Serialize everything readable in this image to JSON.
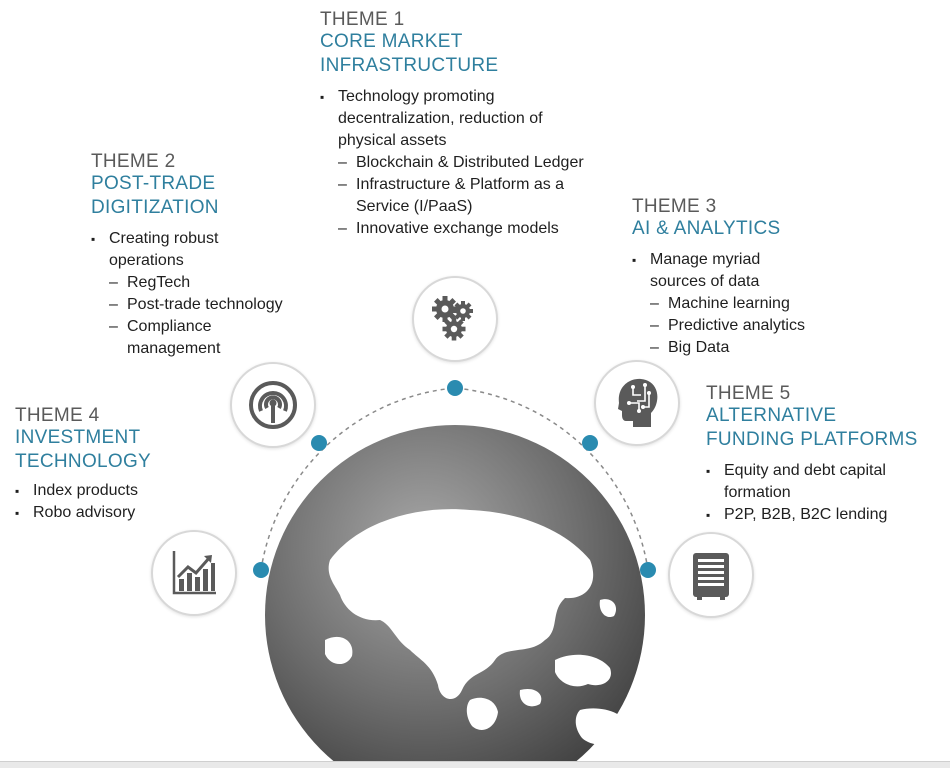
{
  "themes": {
    "t1": {
      "number": "THEME 1",
      "title_lines": [
        "CORE MARKET",
        "INFRASTRUCTURE"
      ],
      "bullets": [
        {
          "text": "Technology promoting decentralization, reduction of physical assets",
          "subs": [
            "Blockchain & Distributed Ledger",
            "Infrastructure & Platform as a Service  (I/PaaS)",
            "Innovative exchange models"
          ]
        }
      ]
    },
    "t2": {
      "number": "THEME 2",
      "title_lines": [
        "POST-TRADE",
        "DIGITIZATION"
      ],
      "bullets": [
        {
          "text": "Creating robust operations",
          "subs": [
            "RegTech",
            "Post-trade technology",
            "Compliance management"
          ]
        }
      ]
    },
    "t3": {
      "number": "THEME 3",
      "title_lines": [
        "AI & ANALYTICS"
      ],
      "bullets": [
        {
          "text": "Manage myriad sources of data",
          "subs": [
            "Machine learning",
            "Predictive analytics",
            "Big Data"
          ]
        }
      ]
    },
    "t4": {
      "number": "THEME 4",
      "title_lines": [
        "INVESTMENT",
        "TECHNOLOGY"
      ],
      "bullets": [
        {
          "text": "Index products",
          "subs": []
        },
        {
          "text": "Robo advisory",
          "subs": []
        }
      ]
    },
    "t5": {
      "number": "THEME 5",
      "title_lines": [
        "ALTERNATIVE",
        "FUNDING PLATFORMS"
      ],
      "bullets": [
        {
          "text": "Equity and debt capital formation",
          "subs": []
        },
        {
          "text": "P2P, B2B, B2C lending",
          "subs": []
        }
      ]
    }
  },
  "icons": {
    "t1": "gears-icon",
    "t2": "broadcast-signal-icon",
    "t3": "ai-head-icon",
    "t4": "growth-chart-icon",
    "t5": "server-stack-icon"
  },
  "colors": {
    "accent": "#2f7f9e",
    "dot": "#2a8bb0",
    "theme_number": "#5a5a5a",
    "globe_dark": "#4a4a4a",
    "globe_light": "#9a9a9a"
  }
}
